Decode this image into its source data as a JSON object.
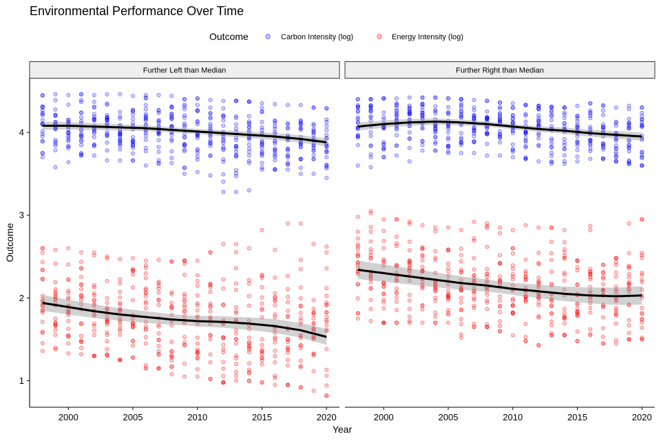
{
  "chart_data": {
    "type": "scatter",
    "title": "Environmental Performance Over Time",
    "xlabel": "Year",
    "ylabel": "Outcome",
    "xlim": [
      1997,
      2021
    ],
    "ylim": [
      0.68,
      4.65
    ],
    "x_ticks": [
      2000,
      2005,
      2010,
      2015,
      2020
    ],
    "y_ticks": [
      1,
      2,
      3,
      4
    ],
    "legend": {
      "title": "Outcome",
      "position": "top",
      "entries": [
        "Carbon Intensity (log)",
        "Energy Intensity (log)"
      ]
    },
    "colors": {
      "Carbon Intensity (log)": "#0000ff",
      "Energy Intensity (log)": "#ff0000",
      "smooth_line": "#000000",
      "smooth_band": "#999999",
      "strip_fill": "#efefef"
    },
    "panels": [
      {
        "label": "Further Left than Median",
        "series": [
          {
            "name": "Carbon Intensity (log)",
            "smooth": {
              "x": [
                1998,
                2000,
                2002,
                2004,
                2006,
                2008,
                2010,
                2012,
                2014,
                2016,
                2018,
                2020
              ],
              "y": [
                4.08,
                4.08,
                4.07,
                4.06,
                4.05,
                4.03,
                4.01,
                3.99,
                3.97,
                3.95,
                3.92,
                3.88
              ]
            },
            "band_halfwidth": 0.03,
            "points_per_year": [
              [
                1998,
                4.07,
                0.17,
                3.7,
                4.45
              ],
              [
                1999,
                4.06,
                0.18,
                3.58,
                4.46
              ],
              [
                2000,
                4.06,
                0.17,
                3.64,
                4.45
              ],
              [
                2001,
                4.06,
                0.17,
                3.72,
                4.46
              ],
              [
                2002,
                4.06,
                0.17,
                3.72,
                4.45
              ],
              [
                2003,
                4.05,
                0.17,
                3.66,
                4.46
              ],
              [
                2004,
                4.05,
                0.17,
                3.66,
                4.46
              ],
              [
                2005,
                4.05,
                0.17,
                3.66,
                4.44
              ],
              [
                2006,
                4.04,
                0.18,
                3.6,
                4.45
              ],
              [
                2007,
                4.03,
                0.18,
                3.62,
                4.45
              ],
              [
                2008,
                4.02,
                0.18,
                3.63,
                4.44
              ],
              [
                2009,
                4.01,
                0.19,
                3.5,
                4.4
              ],
              [
                2010,
                4.0,
                0.19,
                3.52,
                4.41
              ],
              [
                2011,
                3.99,
                0.19,
                3.48,
                4.39
              ],
              [
                2012,
                3.97,
                0.22,
                3.28,
                4.38
              ],
              [
                2013,
                3.96,
                0.22,
                3.28,
                4.38
              ],
              [
                2014,
                3.95,
                0.22,
                3.3,
                4.37
              ],
              [
                2015,
                3.94,
                0.19,
                3.55,
                4.35
              ],
              [
                2016,
                3.92,
                0.19,
                3.55,
                4.34
              ],
              [
                2017,
                3.91,
                0.19,
                3.55,
                4.33
              ],
              [
                2018,
                3.9,
                0.2,
                3.5,
                4.33
              ],
              [
                2019,
                3.89,
                0.2,
                3.5,
                4.3
              ],
              [
                2020,
                3.87,
                0.21,
                3.45,
                4.29
              ]
            ]
          },
          {
            "name": "Energy Intensity (log)",
            "smooth": {
              "x": [
                1998,
                2000,
                2002,
                2004,
                2006,
                2008,
                2010,
                2012,
                2014,
                2016,
                2018,
                2020
              ],
              "y": [
                1.94,
                1.89,
                1.84,
                1.8,
                1.77,
                1.74,
                1.72,
                1.71,
                1.69,
                1.66,
                1.61,
                1.53
              ]
            },
            "band_halfwidth": 0.06,
            "points_per_year": [
              [
                1998,
                1.94,
                0.32,
                1.36,
                2.6
              ],
              [
                1999,
                1.92,
                0.33,
                1.38,
                2.58
              ],
              [
                2000,
                1.89,
                0.34,
                1.33,
                2.6
              ],
              [
                2001,
                1.87,
                0.33,
                1.32,
                2.55
              ],
              [
                2002,
                1.84,
                0.34,
                1.3,
                2.55
              ],
              [
                2003,
                1.82,
                0.33,
                1.3,
                2.5
              ],
              [
                2004,
                1.8,
                0.34,
                1.25,
                2.47
              ],
              [
                2005,
                1.79,
                0.34,
                1.28,
                2.48
              ],
              [
                2006,
                1.77,
                0.35,
                1.15,
                2.45
              ],
              [
                2007,
                1.76,
                0.35,
                1.15,
                2.46
              ],
              [
                2008,
                1.74,
                0.36,
                1.08,
                2.44
              ],
              [
                2009,
                1.73,
                0.37,
                1.05,
                2.45
              ],
              [
                2010,
                1.72,
                0.37,
                1.05,
                2.45
              ],
              [
                2011,
                1.72,
                0.38,
                1.02,
                2.55
              ],
              [
                2012,
                1.71,
                0.39,
                0.98,
                2.65
              ],
              [
                2013,
                1.71,
                0.39,
                1.0,
                2.65
              ],
              [
                2014,
                1.7,
                0.38,
                1.0,
                2.6
              ],
              [
                2015,
                1.68,
                0.4,
                0.98,
                2.82
              ],
              [
                2016,
                1.66,
                0.4,
                0.95,
                2.58
              ],
              [
                2017,
                1.64,
                0.41,
                0.95,
                2.9
              ],
              [
                2018,
                1.61,
                0.42,
                0.92,
                2.9
              ],
              [
                2019,
                1.57,
                0.42,
                0.88,
                2.65
              ],
              [
                2020,
                1.53,
                0.43,
                0.82,
                2.62
              ]
            ]
          }
        ]
      },
      {
        "label": "Further Right than Median",
        "series": [
          {
            "name": "Carbon Intensity (log)",
            "smooth": {
              "x": [
                1998,
                2000,
                2002,
                2004,
                2006,
                2008,
                2010,
                2012,
                2014,
                2016,
                2018,
                2020
              ],
              "y": [
                4.07,
                4.1,
                4.12,
                4.13,
                4.12,
                4.1,
                4.07,
                4.04,
                4.02,
                3.99,
                3.97,
                3.95
              ]
            },
            "band_halfwidth": 0.03,
            "points_per_year": [
              [
                1998,
                4.07,
                0.2,
                3.6,
                4.4
              ],
              [
                1999,
                4.09,
                0.19,
                3.58,
                4.4
              ],
              [
                2000,
                4.1,
                0.18,
                3.7,
                4.41
              ],
              [
                2001,
                4.11,
                0.18,
                3.72,
                4.41
              ],
              [
                2002,
                4.12,
                0.17,
                3.65,
                4.42
              ],
              [
                2003,
                4.13,
                0.17,
                3.78,
                4.42
              ],
              [
                2004,
                4.13,
                0.17,
                3.78,
                4.42
              ],
              [
                2005,
                4.13,
                0.17,
                3.75,
                4.41
              ],
              [
                2006,
                4.12,
                0.17,
                3.75,
                4.4
              ],
              [
                2007,
                4.11,
                0.17,
                3.75,
                4.39
              ],
              [
                2008,
                4.1,
                0.18,
                3.72,
                4.38
              ],
              [
                2009,
                4.08,
                0.18,
                3.72,
                4.36
              ],
              [
                2010,
                4.07,
                0.18,
                3.7,
                4.35
              ],
              [
                2011,
                4.05,
                0.18,
                3.68,
                4.33
              ],
              [
                2012,
                4.04,
                0.19,
                3.65,
                4.32
              ],
              [
                2013,
                4.03,
                0.19,
                3.62,
                4.31
              ],
              [
                2014,
                4.02,
                0.19,
                3.62,
                4.3
              ],
              [
                2015,
                4.0,
                0.19,
                3.65,
                4.32
              ],
              [
                2016,
                3.99,
                0.19,
                3.68,
                4.35
              ],
              [
                2017,
                3.98,
                0.2,
                3.68,
                4.33
              ],
              [
                2018,
                3.97,
                0.2,
                3.65,
                4.3
              ],
              [
                2019,
                3.96,
                0.2,
                3.62,
                4.32
              ],
              [
                2020,
                3.95,
                0.21,
                3.6,
                4.3
              ]
            ]
          },
          {
            "name": "Energy Intensity (log)",
            "smooth": {
              "x": [
                1998,
                2000,
                2002,
                2004,
                2006,
                2008,
                2010,
                2012,
                2014,
                2016,
                2018,
                2020
              ],
              "y": [
                2.34,
                2.3,
                2.26,
                2.22,
                2.18,
                2.15,
                2.11,
                2.08,
                2.05,
                2.03,
                2.02,
                2.03
              ]
            },
            "band_halfwidth": 0.07,
            "points_per_year": [
              [
                1998,
                2.34,
                0.32,
                1.75,
                2.98
              ],
              [
                1999,
                2.32,
                0.32,
                1.72,
                3.05
              ],
              [
                2000,
                2.3,
                0.32,
                1.7,
                2.95
              ],
              [
                2001,
                2.28,
                0.32,
                1.7,
                2.95
              ],
              [
                2002,
                2.26,
                0.32,
                1.7,
                2.92
              ],
              [
                2003,
                2.24,
                0.31,
                1.7,
                2.88
              ],
              [
                2004,
                2.22,
                0.31,
                1.7,
                2.85
              ],
              [
                2005,
                2.2,
                0.31,
                1.7,
                2.85
              ],
              [
                2006,
                2.18,
                0.31,
                1.52,
                2.82
              ],
              [
                2007,
                2.17,
                0.31,
                1.65,
                2.92
              ],
              [
                2008,
                2.15,
                0.31,
                1.65,
                2.9
              ],
              [
                2009,
                2.13,
                0.31,
                1.6,
                2.85
              ],
              [
                2010,
                2.11,
                0.31,
                1.55,
                2.82
              ],
              [
                2011,
                2.1,
                0.31,
                1.48,
                2.88
              ],
              [
                2012,
                2.08,
                0.31,
                1.43,
                2.85
              ],
              [
                2013,
                2.06,
                0.31,
                1.55,
                2.85
              ],
              [
                2014,
                2.05,
                0.31,
                1.55,
                2.82
              ],
              [
                2015,
                2.04,
                0.31,
                1.48,
                2.45
              ],
              [
                2016,
                2.03,
                0.31,
                1.55,
                2.87
              ],
              [
                2017,
                2.02,
                0.31,
                1.45,
                2.4
              ],
              [
                2018,
                2.02,
                0.31,
                1.45,
                2.48
              ],
              [
                2019,
                2.02,
                0.32,
                1.5,
                2.9
              ],
              [
                2020,
                2.03,
                0.32,
                1.5,
                2.95
              ]
            ]
          }
        ]
      }
    ]
  }
}
